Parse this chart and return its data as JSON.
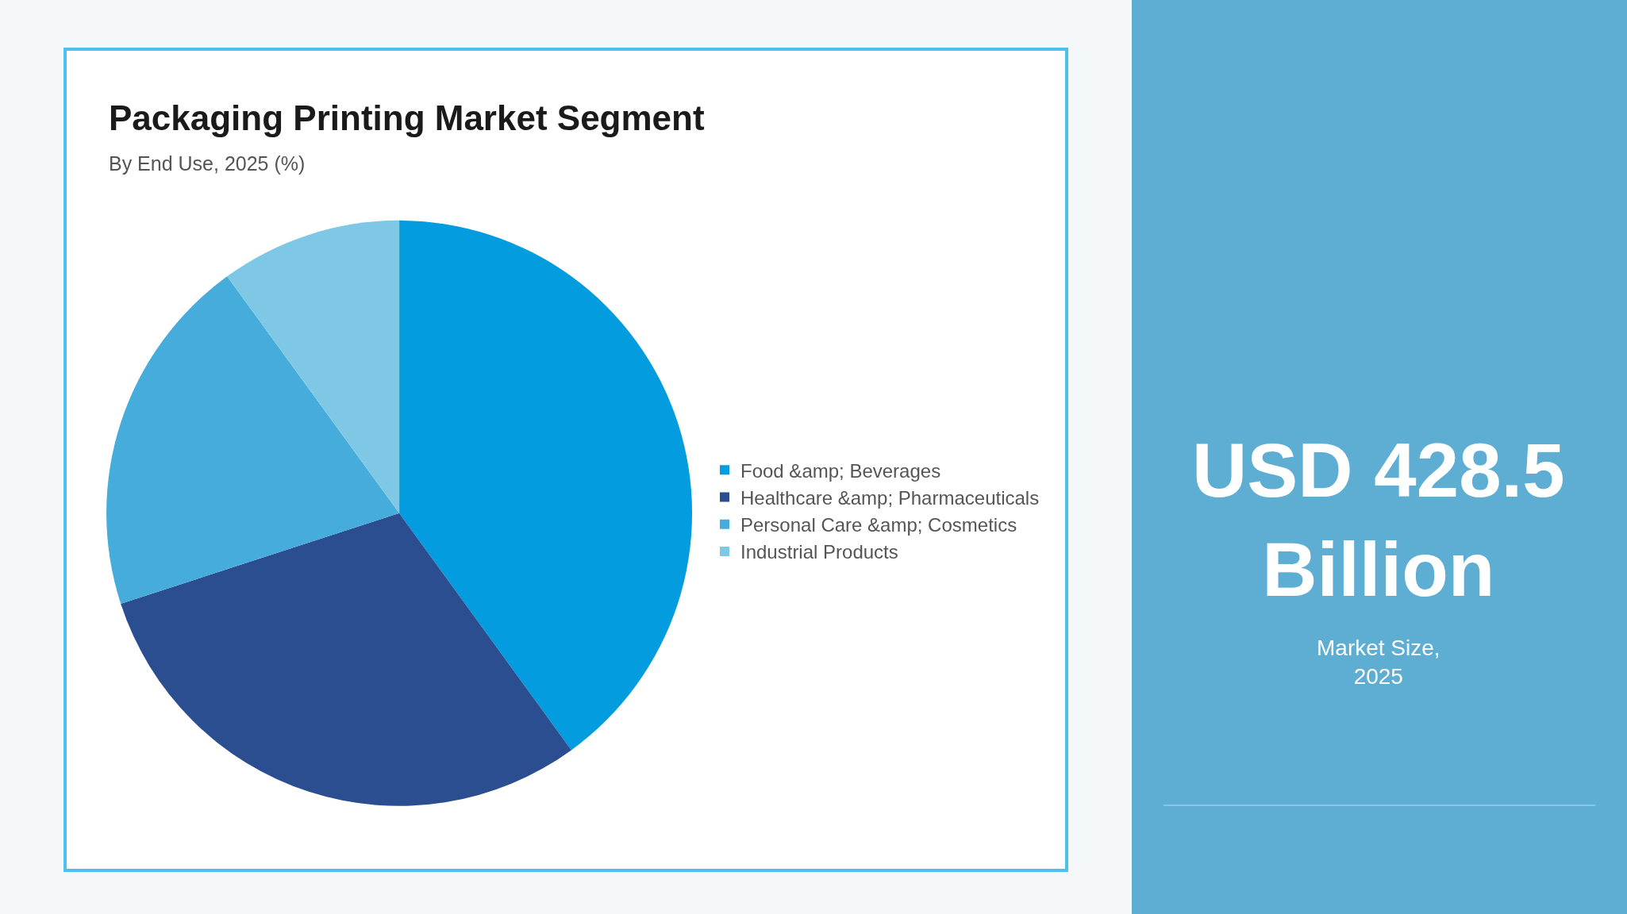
{
  "chart_data": {
    "type": "pie",
    "title": "Packaging Printing Market Segment",
    "subtitle": "By End Use, 2025 (%)",
    "categories": [
      "Food &amp; Beverages",
      "Healthcare &amp; Pharmaceuticals",
      "Personal Care &amp; Cosmetics",
      "Industrial Products"
    ],
    "values": [
      40,
      30,
      20,
      10
    ],
    "colors": [
      "#039ddf",
      "#2a4e8f",
      "#45acdb",
      "#7fc8e5"
    ],
    "legend": "right",
    "annotations": [
      "USD 428.5 Billion",
      "Market Size, 2025"
    ]
  }
}
